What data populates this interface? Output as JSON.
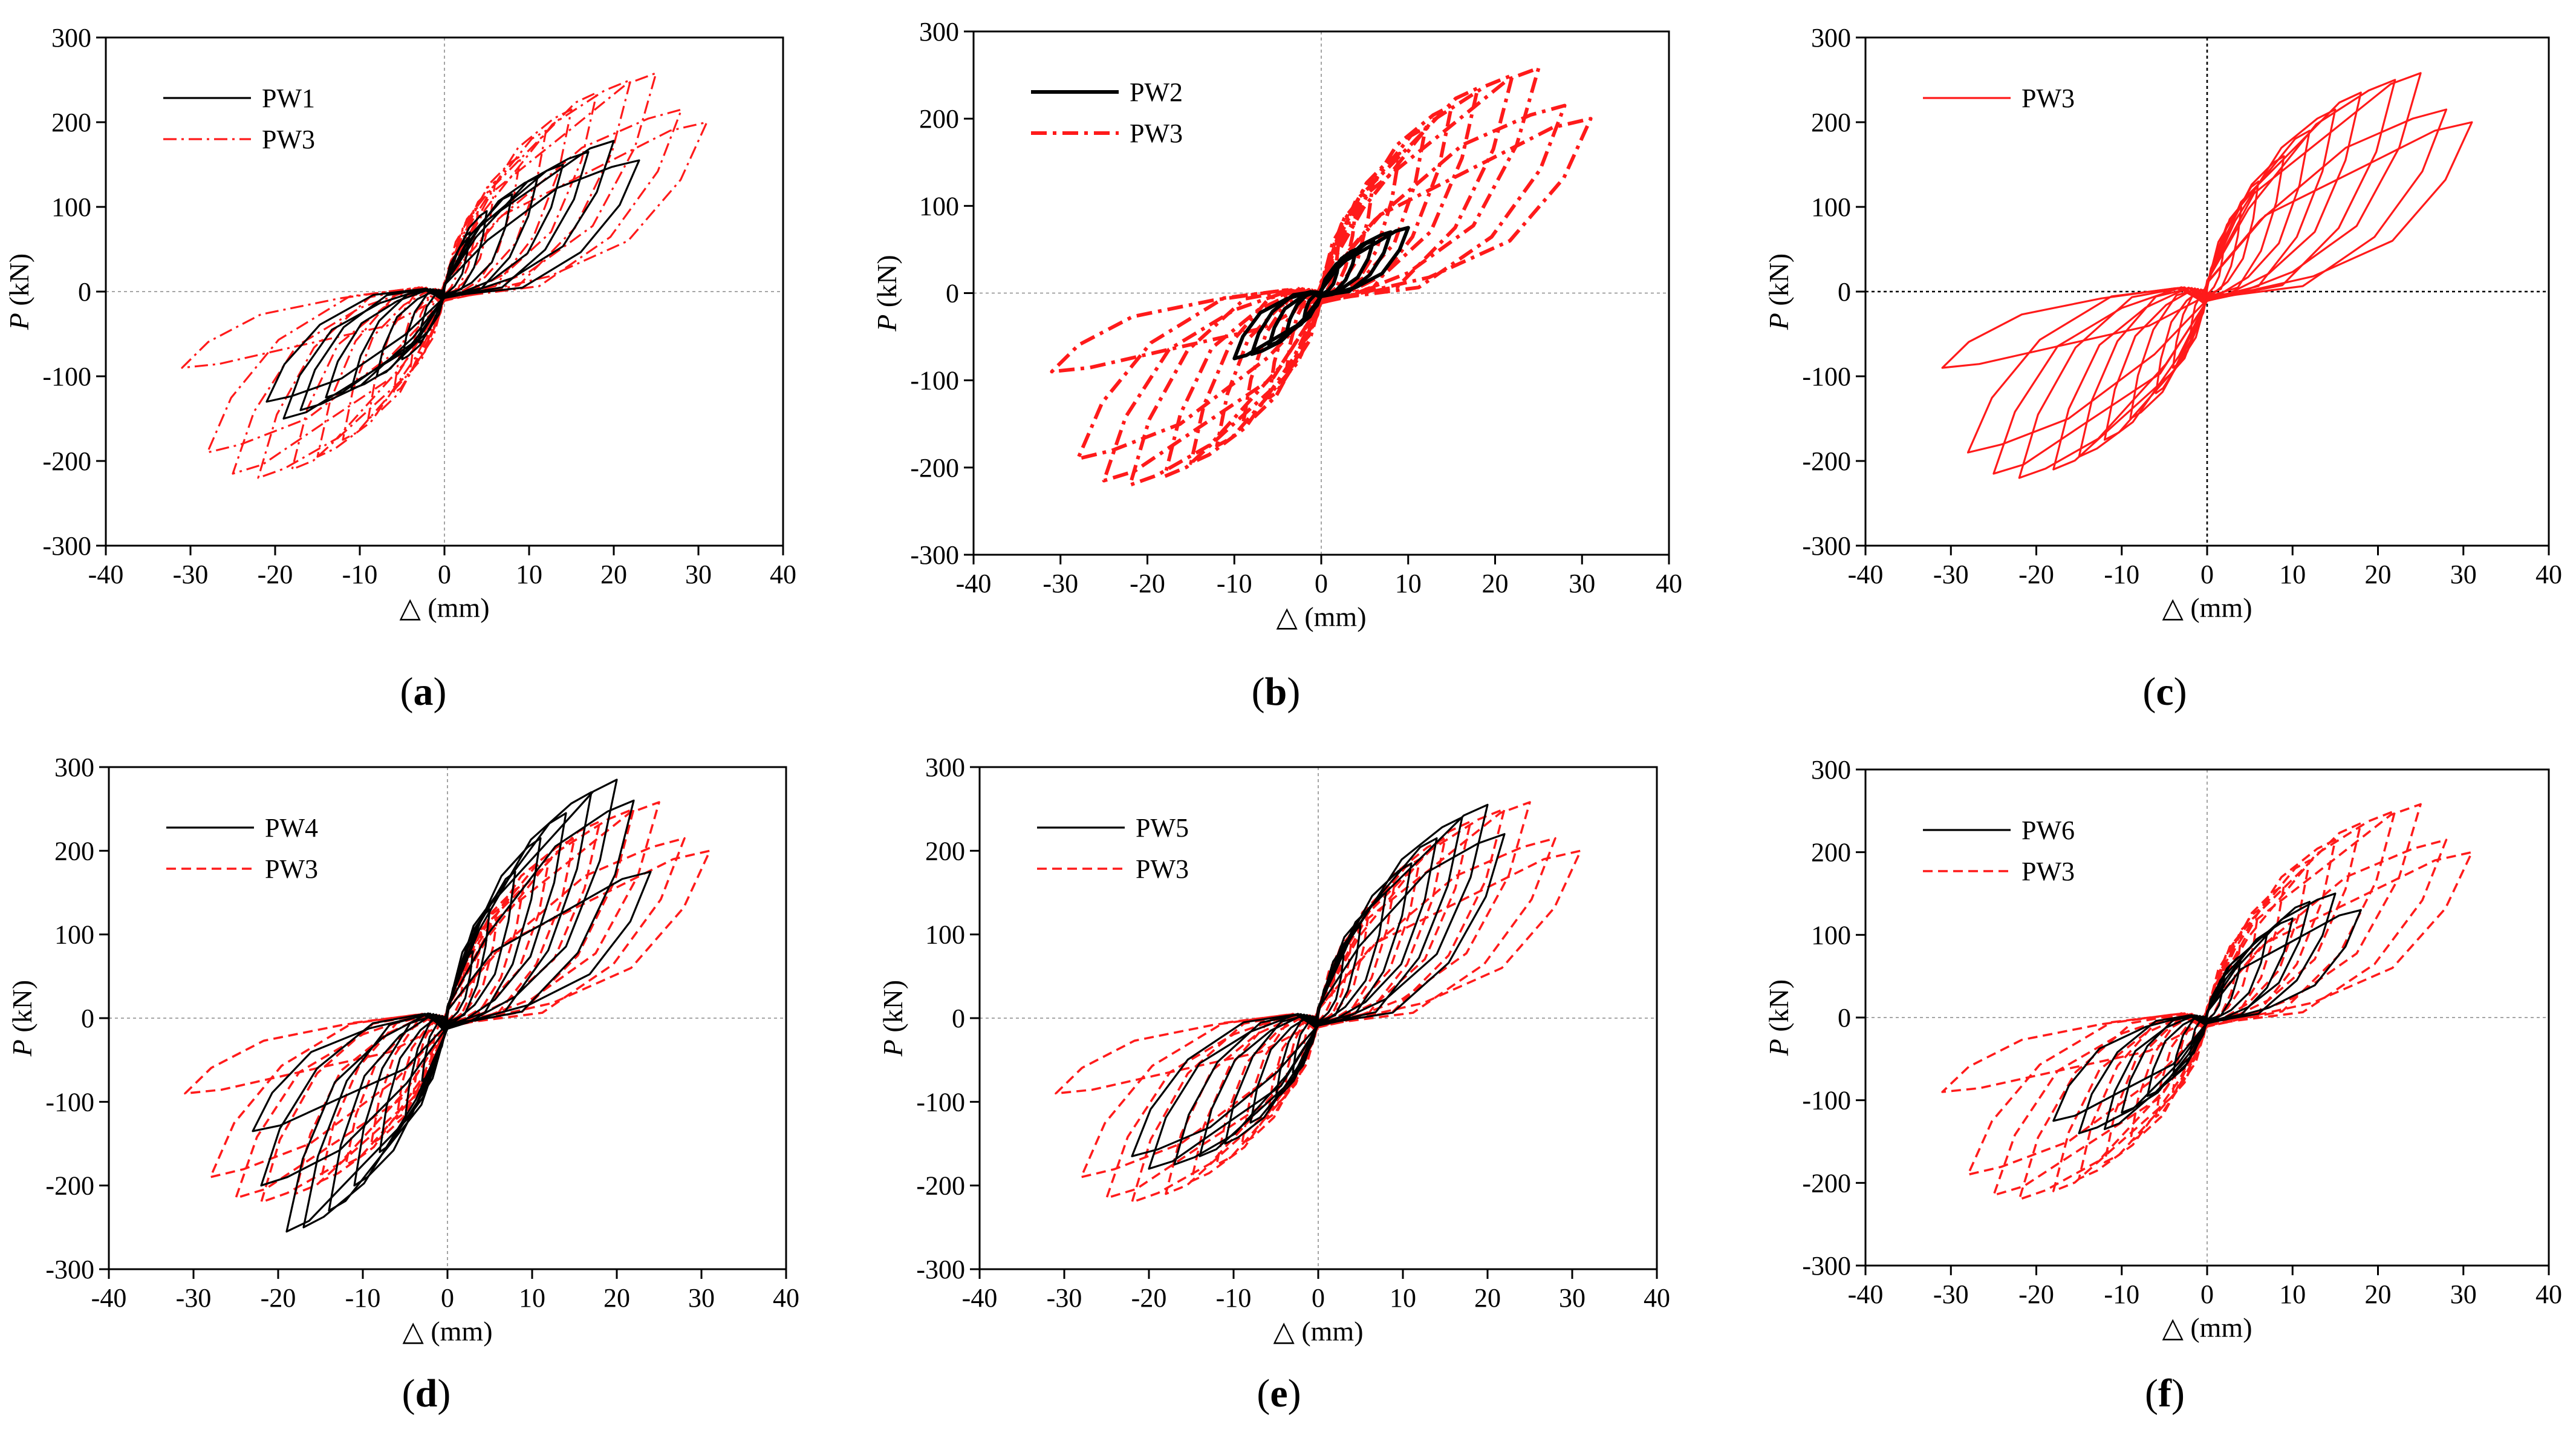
{
  "colors": {
    "specimen": "#000000",
    "reference": "#ff1a1a",
    "zero_line": "#9a9a9a"
  },
  "chart_data": [
    {
      "type": "line",
      "panel": "a",
      "caption_label": "a",
      "xlabel": "△ (mm)",
      "ylabel_italic": "P",
      "ylabel_unit": " (kN)",
      "xlim": [
        -40,
        40
      ],
      "ylim": [
        -300,
        300
      ],
      "xticks": [
        -40,
        -30,
        -20,
        -10,
        0,
        10,
        20,
        30,
        40
      ],
      "yticks": [
        -300,
        -200,
        -100,
        0,
        100,
        200,
        300
      ],
      "zero_line": "dotted-gray",
      "legend_position": "top-left",
      "series": [
        {
          "name": "PW1",
          "color": "#000000",
          "style": "solid-thin",
          "peaks": [
            [
              3,
              70,
              -3,
              -60
            ],
            [
              5,
              95,
              -5,
              -80
            ],
            [
              8,
              115,
              -8,
              -100
            ],
            [
              11,
              135,
              -11,
              -115
            ],
            [
              14,
              150,
              -14,
              -125
            ],
            [
              17,
              165,
              -17,
              -140
            ],
            [
              20,
              178,
              -19,
              -150
            ],
            [
              23,
              155,
              -21,
              -130
            ]
          ]
        },
        {
          "name": "PW3",
          "color": "#ff1a1a",
          "style": "dashdot-thin",
          "peaks": [
            [
              2,
              60,
              -2,
              -55
            ],
            [
              4,
              100,
              -4,
              -90
            ],
            [
              6,
              130,
              -6,
              -120
            ],
            [
              9,
              160,
              -9,
              -150
            ],
            [
              12,
              190,
              -12,
              -175
            ],
            [
              15,
              215,
              -15,
              -195
            ],
            [
              18,
              235,
              -18,
              -210
            ],
            [
              22,
              250,
              -22,
              -220
            ],
            [
              25,
              258,
              -25,
              -215
            ],
            [
              28,
              215,
              -28,
              -190
            ],
            [
              31,
              200,
              -31,
              -90
            ]
          ]
        }
      ]
    },
    {
      "type": "line",
      "panel": "b",
      "caption_label": "b",
      "xlabel": "△ (mm)",
      "ylabel_italic": "P",
      "ylabel_unit": " (kN)",
      "xlim": [
        -40,
        40
      ],
      "ylim": [
        -300,
        300
      ],
      "xticks": [
        -40,
        -30,
        -20,
        -10,
        0,
        10,
        20,
        30,
        40
      ],
      "yticks": [
        -300,
        -200,
        -100,
        0,
        100,
        200,
        300
      ],
      "zero_line": "dotted-gray",
      "legend_position": "top-left",
      "series": [
        {
          "name": "PW2",
          "color": "#000000",
          "style": "solid-thick",
          "peaks": [
            [
              2,
              35,
              -2,
              -30
            ],
            [
              4,
              50,
              -4,
              -45
            ],
            [
              6,
              60,
              -6,
              -60
            ],
            [
              8,
              70,
              -8,
              -70
            ],
            [
              10,
              75,
              -10,
              -75
            ]
          ]
        },
        {
          "name": "PW3",
          "color": "#ff1a1a",
          "style": "dashdot-thick",
          "peaks": [
            [
              2,
              60,
              -2,
              -55
            ],
            [
              4,
              100,
              -4,
              -90
            ],
            [
              6,
              130,
              -6,
              -120
            ],
            [
              9,
              160,
              -9,
              -150
            ],
            [
              12,
              190,
              -12,
              -175
            ],
            [
              15,
              215,
              -15,
              -195
            ],
            [
              18,
              235,
              -18,
              -210
            ],
            [
              22,
              250,
              -22,
              -220
            ],
            [
              25,
              258,
              -25,
              -215
            ],
            [
              28,
              215,
              -28,
              -190
            ],
            [
              31,
              200,
              -31,
              -90
            ]
          ]
        }
      ]
    },
    {
      "type": "line",
      "panel": "c",
      "caption_label": "c",
      "xlabel": "△ (mm)",
      "ylabel_italic": "P",
      "ylabel_unit": " (kN)",
      "xlim": [
        -40,
        40
      ],
      "ylim": [
        -300,
        300
      ],
      "xticks": [
        -40,
        -30,
        -20,
        -10,
        0,
        10,
        20,
        30,
        40
      ],
      "yticks": [
        -300,
        -200,
        -100,
        0,
        100,
        200,
        300
      ],
      "zero_line": "dotted-black",
      "legend_position": "top-left",
      "series": [
        {
          "name": "PW3",
          "color": "#ff1a1a",
          "style": "solid-thin",
          "peaks": [
            [
              2,
              60,
              -2,
              -55
            ],
            [
              4,
              100,
              -4,
              -90
            ],
            [
              6,
              130,
              -6,
              -120
            ],
            [
              9,
              160,
              -9,
              -150
            ],
            [
              12,
              190,
              -12,
              -175
            ],
            [
              15,
              215,
              -15,
              -195
            ],
            [
              18,
              235,
              -18,
              -210
            ],
            [
              22,
              250,
              -22,
              -220
            ],
            [
              25,
              258,
              -25,
              -215
            ],
            [
              28,
              215,
              -28,
              -190
            ],
            [
              31,
              200,
              -31,
              -90
            ]
          ]
        }
      ]
    },
    {
      "type": "line",
      "panel": "d",
      "caption_label": "d",
      "xlabel": "△ (mm)",
      "ylabel_italic": "P",
      "ylabel_unit": " (kN)",
      "xlim": [
        -40,
        40
      ],
      "ylim": [
        -300,
        300
      ],
      "xticks": [
        -40,
        -30,
        -20,
        -10,
        0,
        10,
        20,
        30,
        40
      ],
      "yticks": [
        -300,
        -200,
        -100,
        0,
        100,
        200,
        300
      ],
      "zero_line": "dotted-gray",
      "legend_position": "top-left",
      "series": [
        {
          "name": "PW4",
          "color": "#000000",
          "style": "solid-thin",
          "peaks": [
            [
              3,
              80,
              -3,
              -75
            ],
            [
              5,
              130,
              -5,
              -120
            ],
            [
              8,
              175,
              -8,
              -160
            ],
            [
              11,
              215,
              -11,
              -200
            ],
            [
              14,
              245,
              -14,
              -230
            ],
            [
              17,
              270,
              -17,
              -250
            ],
            [
              20,
              285,
              -19,
              -255
            ],
            [
              22,
              260,
              -22,
              -200
            ],
            [
              24,
              175,
              -23,
              -135
            ]
          ]
        },
        {
          "name": "PW3",
          "color": "#ff1a1a",
          "style": "dashed-thin",
          "peaks": [
            [
              2,
              60,
              -2,
              -55
            ],
            [
              4,
              100,
              -4,
              -90
            ],
            [
              6,
              130,
              -6,
              -120
            ],
            [
              9,
              160,
              -9,
              -150
            ],
            [
              12,
              190,
              -12,
              -175
            ],
            [
              15,
              215,
              -15,
              -195
            ],
            [
              18,
              235,
              -18,
              -210
            ],
            [
              22,
              250,
              -22,
              -220
            ],
            [
              25,
              258,
              -25,
              -215
            ],
            [
              28,
              215,
              -28,
              -190
            ],
            [
              31,
              200,
              -31,
              -90
            ]
          ]
        }
      ]
    },
    {
      "type": "line",
      "panel": "e",
      "caption_label": "e",
      "xlabel": "△ (mm)",
      "ylabel_italic": "P",
      "ylabel_unit": " (kN)",
      "xlim": [
        -40,
        40
      ],
      "ylim": [
        -300,
        300
      ],
      "xticks": [
        -40,
        -30,
        -20,
        -10,
        0,
        10,
        20,
        30,
        40
      ],
      "yticks": [
        -300,
        -200,
        -100,
        0,
        100,
        200,
        300
      ],
      "zero_line": "dotted-gray",
      "legend_position": "top-left",
      "series": [
        {
          "name": "PW5",
          "color": "#000000",
          "style": "solid-thin",
          "peaks": [
            [
              3,
              75,
              -3,
              -65
            ],
            [
              5,
              110,
              -5,
              -95
            ],
            [
              8,
              150,
              -8,
              -125
            ],
            [
              11,
              185,
              -11,
              -150
            ],
            [
              14,
              215,
              -14,
              -165
            ],
            [
              17,
              240,
              -17,
              -175
            ],
            [
              20,
              255,
              -20,
              -180
            ],
            [
              22,
              220,
              -22,
              -165
            ]
          ]
        },
        {
          "name": "PW3",
          "color": "#ff1a1a",
          "style": "dashed-thin",
          "peaks": [
            [
              2,
              60,
              -2,
              -55
            ],
            [
              4,
              100,
              -4,
              -90
            ],
            [
              6,
              130,
              -6,
              -120
            ],
            [
              9,
              160,
              -9,
              -150
            ],
            [
              12,
              190,
              -12,
              -175
            ],
            [
              15,
              215,
              -15,
              -195
            ],
            [
              18,
              235,
              -18,
              -210
            ],
            [
              22,
              250,
              -22,
              -220
            ],
            [
              25,
              258,
              -25,
              -215
            ],
            [
              28,
              215,
              -28,
              -190
            ],
            [
              31,
              200,
              -31,
              -90
            ]
          ]
        }
      ]
    },
    {
      "type": "line",
      "panel": "f",
      "caption_label": "f",
      "xlabel": "△ (mm)",
      "ylabel_italic": "P",
      "ylabel_unit": " (kN)",
      "xlim": [
        -40,
        40
      ],
      "ylim": [
        -300,
        300
      ],
      "xticks": [
        -40,
        -30,
        -20,
        -10,
        0,
        10,
        20,
        30,
        40
      ],
      "yticks": [
        -300,
        -200,
        -100,
        0,
        100,
        200,
        300
      ],
      "zero_line": "dotted-gray",
      "legend_position": "top-left",
      "series": [
        {
          "name": "PW6",
          "color": "#000000",
          "style": "solid-thin",
          "peaks": [
            [
              2,
              50,
              -2,
              -45
            ],
            [
              4,
              75,
              -4,
              -70
            ],
            [
              7,
              100,
              -7,
              -95
            ],
            [
              10,
              120,
              -10,
              -115
            ],
            [
              12,
              140,
              -12,
              -135
            ],
            [
              15,
              150,
              -15,
              -140
            ],
            [
              18,
              130,
              -18,
              -125
            ]
          ]
        },
        {
          "name": "PW3",
          "color": "#ff1a1a",
          "style": "dashed-thin",
          "peaks": [
            [
              2,
              60,
              -2,
              -55
            ],
            [
              4,
              100,
              -4,
              -90
            ],
            [
              6,
              130,
              -6,
              -120
            ],
            [
              9,
              160,
              -9,
              -150
            ],
            [
              12,
              190,
              -12,
              -175
            ],
            [
              15,
              215,
              -15,
              -195
            ],
            [
              18,
              235,
              -18,
              -210
            ],
            [
              22,
              250,
              -22,
              -220
            ],
            [
              25,
              258,
              -25,
              -215
            ],
            [
              28,
              215,
              -28,
              -190
            ],
            [
              31,
              200,
              -31,
              -90
            ]
          ]
        }
      ]
    }
  ]
}
